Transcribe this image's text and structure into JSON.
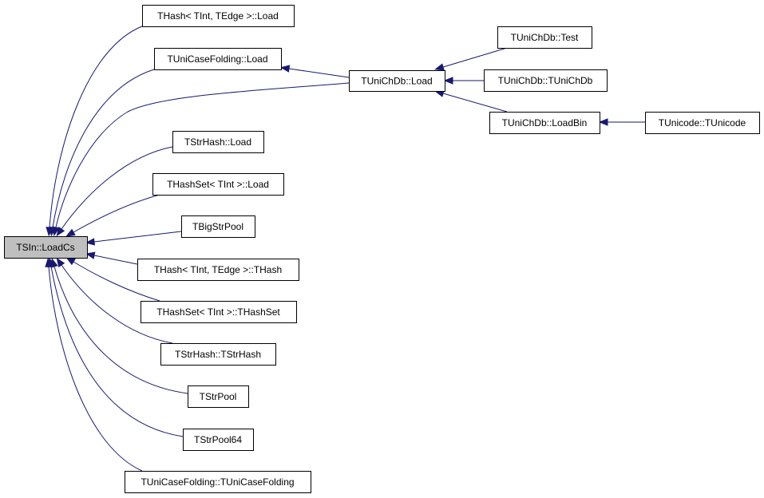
{
  "graph": {
    "edge_color": "#191970",
    "root_fill": "#bfbfbf",
    "nodes": [
      {
        "id": "loadcs",
        "label": "TSIn::LoadCs",
        "root": true
      },
      {
        "id": "hash_load",
        "label": "THash< TInt, TEdge >::Load"
      },
      {
        "id": "ucf_load",
        "label": "TUniCaseFolding::Load"
      },
      {
        "id": "strhash_load",
        "label": "TStrHash::Load"
      },
      {
        "id": "hashset_load",
        "label": "THashSet< TInt >::Load"
      },
      {
        "id": "bigstrpool",
        "label": "TBigStrPool"
      },
      {
        "id": "hash_ctor",
        "label": "THash< TInt, TEdge >::THash"
      },
      {
        "id": "hashset_ctor",
        "label": "THashSet< TInt >::THashSet"
      },
      {
        "id": "strhash_ctor",
        "label": "TStrHash::TStrHash"
      },
      {
        "id": "strpool",
        "label": "TStrPool"
      },
      {
        "id": "strpool64",
        "label": "TStrPool64"
      },
      {
        "id": "ucf_ctor",
        "label": "TUniCaseFolding::TUniCaseFolding"
      },
      {
        "id": "unichdb_load",
        "label": "TUniChDb::Load"
      },
      {
        "id": "unichdb_test",
        "label": "TUniChDb::Test"
      },
      {
        "id": "unichdb_ctor",
        "label": "TUniChDb::TUniChDb"
      },
      {
        "id": "unichdb_loadbin",
        "label": "TUniChDb::LoadBin"
      },
      {
        "id": "unicode_ctor",
        "label": "TUnicode::TUnicode"
      }
    ],
    "edges": [
      {
        "from": "hash_load",
        "to": "loadcs"
      },
      {
        "from": "ucf_load",
        "to": "loadcs"
      },
      {
        "from": "unichdb_load",
        "to": "loadcs"
      },
      {
        "from": "strhash_load",
        "to": "loadcs"
      },
      {
        "from": "hashset_load",
        "to": "loadcs"
      },
      {
        "from": "bigstrpool",
        "to": "loadcs"
      },
      {
        "from": "hash_ctor",
        "to": "loadcs"
      },
      {
        "from": "hashset_ctor",
        "to": "loadcs"
      },
      {
        "from": "strhash_ctor",
        "to": "loadcs"
      },
      {
        "from": "strpool",
        "to": "loadcs"
      },
      {
        "from": "strpool64",
        "to": "loadcs"
      },
      {
        "from": "ucf_ctor",
        "to": "loadcs"
      },
      {
        "from": "unichdb_load",
        "to": "ucf_load"
      },
      {
        "from": "unichdb_test",
        "to": "unichdb_load"
      },
      {
        "from": "unichdb_ctor",
        "to": "unichdb_load"
      },
      {
        "from": "unichdb_loadbin",
        "to": "unichdb_load"
      },
      {
        "from": "unicode_ctor",
        "to": "unichdb_loadbin"
      }
    ]
  }
}
